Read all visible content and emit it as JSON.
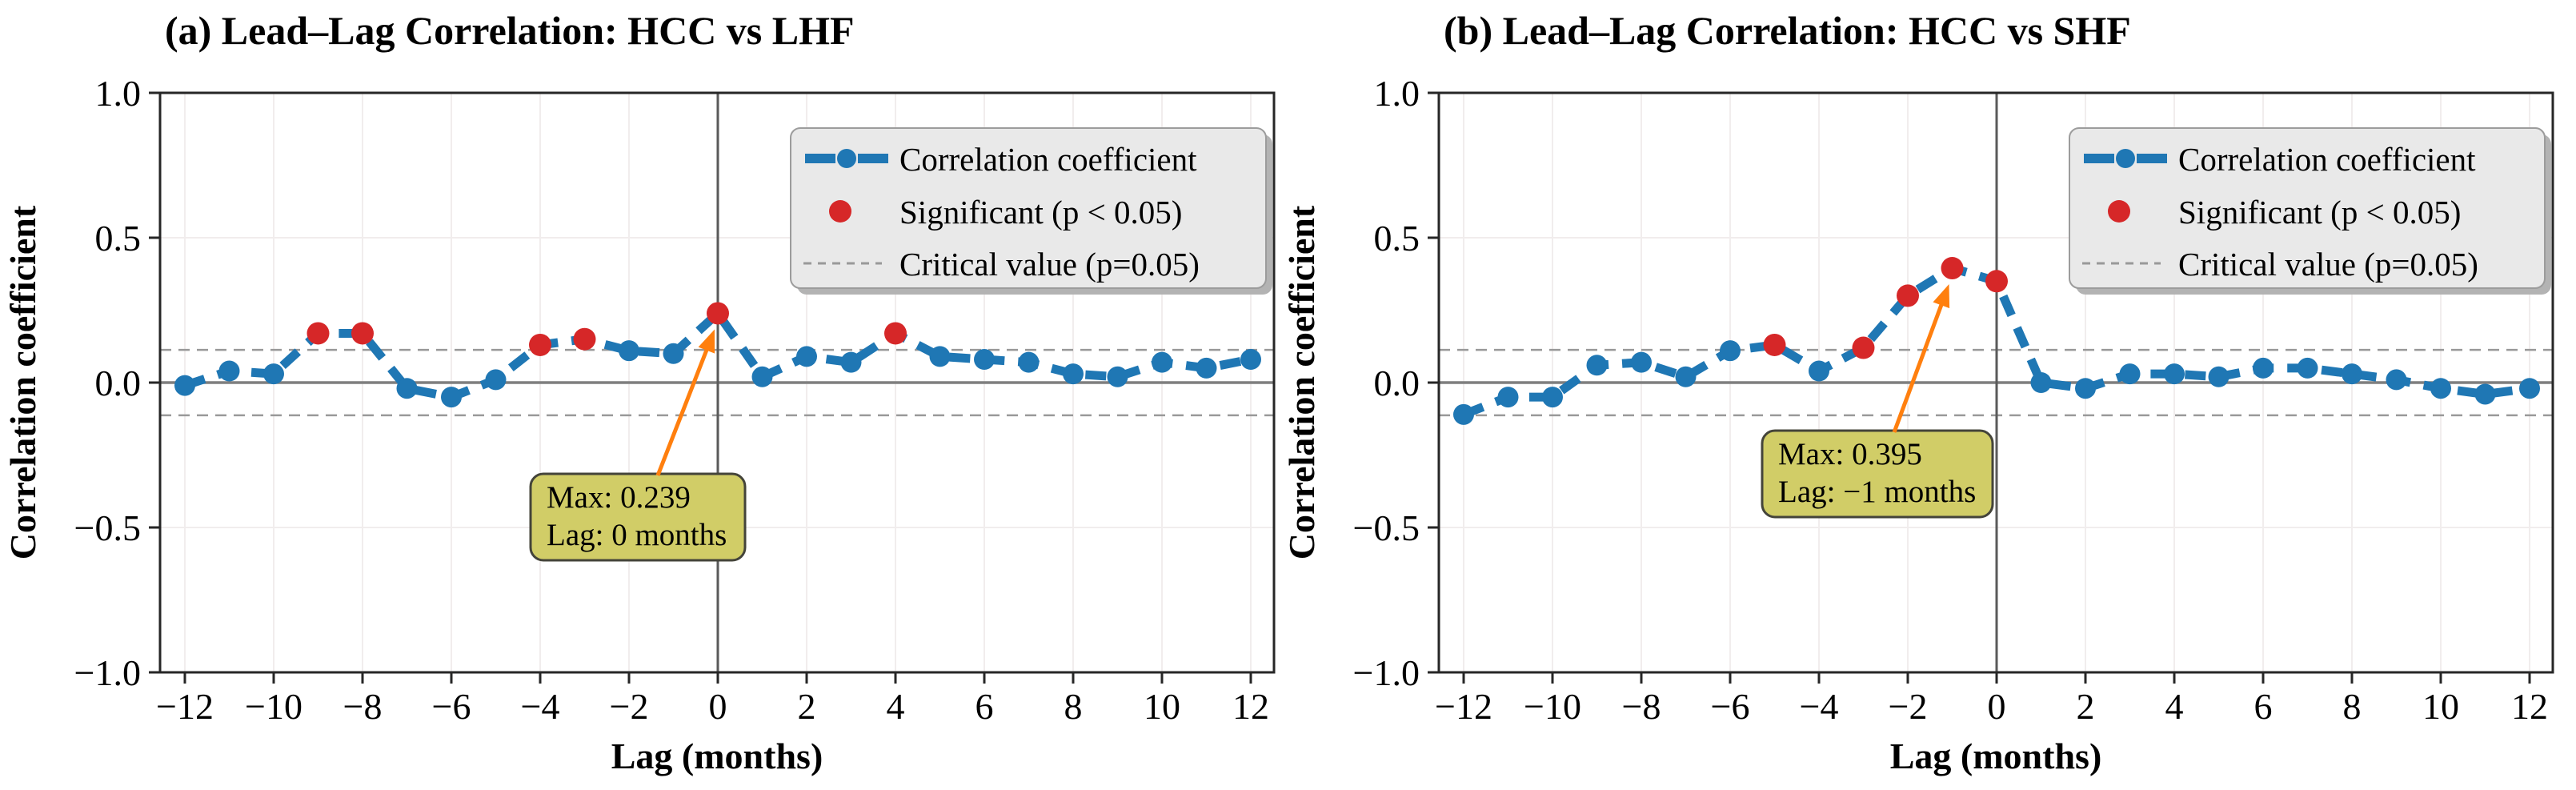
{
  "figure": {
    "panels": [
      {
        "title": "(a) Lead–Lag Correlation: HCC vs LHF",
        "xlabel": "Lag (months)",
        "ylabel": "Correlation coefficient",
        "xticks": [
          "−12",
          "−10",
          "−8",
          "−6",
          "−4",
          "−2",
          "0",
          "2",
          "4",
          "6",
          "8",
          "10",
          "12"
        ],
        "yticks": [
          "1.0",
          "0.5",
          "0.0",
          "−0.5",
          "−1.0"
        ],
        "annotation": {
          "line1": "Max: 0.239",
          "line2": "Lag: 0 months"
        }
      },
      {
        "title": "(b) Lead–Lag Correlation: HCC vs SHF",
        "xlabel": "Lag (months)",
        "ylabel": "Correlation coefficient",
        "xticks": [
          "−12",
          "−10",
          "−8",
          "−6",
          "−4",
          "−2",
          "0",
          "2",
          "4",
          "6",
          "8",
          "10",
          "12"
        ],
        "yticks": [
          "1.0",
          "0.5",
          "0.0",
          "−0.5",
          "−1.0"
        ],
        "annotation": {
          "line1": "Max: 0.395",
          "line2": "Lag: −1 months"
        }
      }
    ],
    "legend": {
      "items": [
        {
          "label": "Correlation coefficient",
          "symbol": "blue-dashed-line-with-dot"
        },
        {
          "label": "Significant (p < 0.05)",
          "symbol": "red-dot"
        },
        {
          "label": "Critical value (p=0.05)",
          "symbol": "gray-dashed-line"
        }
      ]
    }
  },
  "colors": {
    "line_blue": "#1f77b4",
    "significant_red": "#d62728",
    "arrow_orange": "#ff7f0e",
    "annotation_fill": "#d1cd67",
    "legend_bg": "#e9e9e9",
    "critical_gray": "#999999"
  },
  "chart_data": [
    {
      "type": "line",
      "title": "(a) Lead–Lag Correlation: HCC vs LHF",
      "xlabel": "Lag (months)",
      "ylabel": "Correlation coefficient",
      "x": [
        -12,
        -11,
        -10,
        -9,
        -8,
        -7,
        -6,
        -5,
        -4,
        -3,
        -2,
        -1,
        0,
        1,
        2,
        3,
        4,
        5,
        6,
        7,
        8,
        9,
        10,
        11,
        12
      ],
      "series": [
        {
          "name": "Correlation coefficient",
          "values": [
            -0.01,
            0.04,
            0.03,
            0.17,
            0.17,
            -0.02,
            -0.05,
            0.01,
            0.13,
            0.15,
            0.11,
            0.1,
            0.239,
            0.02,
            0.09,
            0.07,
            0.17,
            0.09,
            0.08,
            0.07,
            0.03,
            0.02,
            0.07,
            0.05,
            0.08
          ]
        }
      ],
      "significant_lags": [
        -9,
        -8,
        -4,
        -3,
        0,
        4
      ],
      "critical_value": 0.113,
      "max": {
        "value": 0.239,
        "lag": 0
      },
      "xlim": [
        -12.55,
        12.55
      ],
      "ylim": [
        -1.0,
        1.0
      ],
      "xticks": [
        -12,
        -10,
        -8,
        -6,
        -4,
        -2,
        0,
        2,
        4,
        6,
        8,
        10,
        12
      ],
      "yticks": [
        1.0,
        0.5,
        0.0,
        -0.5,
        -1.0
      ],
      "grid": true,
      "legend_position": "upper right"
    },
    {
      "type": "line",
      "title": "(b) Lead–Lag Correlation: HCC vs SHF",
      "xlabel": "Lag (months)",
      "ylabel": "Correlation coefficient",
      "x": [
        -12,
        -11,
        -10,
        -9,
        -8,
        -7,
        -6,
        -5,
        -4,
        -3,
        -2,
        -1,
        0,
        1,
        2,
        3,
        4,
        5,
        6,
        7,
        8,
        9,
        10,
        11,
        12
      ],
      "series": [
        {
          "name": "Correlation coefficient",
          "values": [
            -0.11,
            -0.05,
            -0.05,
            0.06,
            0.07,
            0.02,
            0.11,
            0.13,
            0.04,
            0.12,
            0.3,
            0.395,
            0.35,
            0.0,
            -0.02,
            0.03,
            0.03,
            0.02,
            0.05,
            0.05,
            0.03,
            0.01,
            -0.02,
            -0.04,
            -0.02
          ]
        }
      ],
      "significant_lags": [
        -5,
        -3,
        -2,
        -1,
        0
      ],
      "critical_value": 0.113,
      "max": {
        "value": 0.395,
        "lag": -1
      },
      "xlim": [
        -12.55,
        12.55
      ],
      "ylim": [
        -1.0,
        1.0
      ],
      "xticks": [
        -12,
        -10,
        -8,
        -6,
        -4,
        -2,
        0,
        2,
        4,
        6,
        8,
        10,
        12
      ],
      "yticks": [
        1.0,
        0.5,
        0.0,
        -0.5,
        -1.0
      ],
      "grid": true,
      "legend_position": "upper right"
    }
  ]
}
